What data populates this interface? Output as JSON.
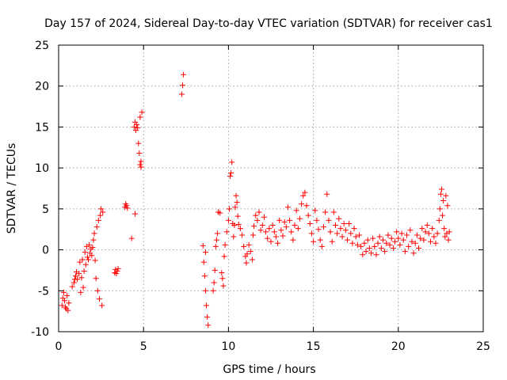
{
  "chart_data": {
    "type": "scatter",
    "title": "Day 157 of 2024, Sidereal Day-to-day VTEC variation (SDTVAR) for receiver cas1",
    "xlabel": "GPS time / hours",
    "ylabel": "SDTVAR / TECUs",
    "xlim": [
      0,
      25
    ],
    "ylim": [
      -10,
      25
    ],
    "xticks": [
      0,
      5,
      10,
      15,
      20,
      25
    ],
    "yticks": [
      -10,
      -5,
      0,
      5,
      10,
      15,
      20,
      25
    ],
    "grid": true,
    "marker": "+",
    "color": "#ff0000",
    "series": [
      {
        "name": "SDTVAR",
        "points": [
          [
            0.2,
            -6.8
          ],
          [
            0.25,
            -5.9
          ],
          [
            0.3,
            -5.2
          ],
          [
            0.35,
            -6.2
          ],
          [
            0.4,
            -7.0
          ],
          [
            0.45,
            -7.2
          ],
          [
            0.5,
            -5.6
          ],
          [
            0.55,
            -7.4
          ],
          [
            0.6,
            -6.5
          ],
          [
            0.8,
            -4.5
          ],
          [
            0.9,
            -4.0
          ],
          [
            0.95,
            -3.6
          ],
          [
            1.0,
            -3.2
          ],
          [
            1.05,
            -2.7
          ],
          [
            1.1,
            -3.6
          ],
          [
            1.2,
            -2.9
          ],
          [
            1.25,
            -1.5
          ],
          [
            1.3,
            -5.2
          ],
          [
            1.35,
            -3.4
          ],
          [
            1.4,
            -1.2
          ],
          [
            1.45,
            -4.6
          ],
          [
            1.5,
            -2.6
          ],
          [
            1.55,
            -0.3
          ],
          [
            1.6,
            -1.8
          ],
          [
            1.65,
            0.4
          ],
          [
            1.7,
            -0.9
          ],
          [
            1.75,
            -1.2
          ],
          [
            1.8,
            0.6
          ],
          [
            1.85,
            -0.4
          ],
          [
            1.9,
            0.1
          ],
          [
            1.95,
            -0.7
          ],
          [
            2.0,
            0.3
          ],
          [
            2.05,
            1.2
          ],
          [
            2.1,
            2.0
          ],
          [
            2.15,
            -1.3
          ],
          [
            2.2,
            -3.5
          ],
          [
            2.25,
            2.8
          ],
          [
            2.3,
            -5.0
          ],
          [
            2.35,
            3.6
          ],
          [
            2.4,
            -6.0
          ],
          [
            2.45,
            4.2
          ],
          [
            2.5,
            5.0
          ],
          [
            2.55,
            -6.8
          ],
          [
            2.6,
            4.6
          ],
          [
            3.3,
            -2.8
          ],
          [
            3.35,
            -2.4
          ],
          [
            3.4,
            -2.9
          ],
          [
            3.45,
            -2.6
          ],
          [
            3.5,
            -2.3
          ],
          [
            3.9,
            5.2
          ],
          [
            3.95,
            5.6
          ],
          [
            4.0,
            5.4
          ],
          [
            4.05,
            5.1
          ],
          [
            4.3,
            1.4
          ],
          [
            4.45,
            15.0
          ],
          [
            4.5,
            15.6
          ],
          [
            4.5,
            4.4
          ],
          [
            4.55,
            14.6
          ],
          [
            4.6,
            15.3
          ],
          [
            4.65,
            14.9
          ],
          [
            4.7,
            13.0
          ],
          [
            4.75,
            11.8
          ],
          [
            4.8,
            10.4
          ],
          [
            4.8,
            16.2
          ],
          [
            4.85,
            10.8
          ],
          [
            4.9,
            16.8
          ],
          [
            4.85,
            10.1
          ],
          [
            7.25,
            19.0
          ],
          [
            7.3,
            20.1
          ],
          [
            7.35,
            21.4
          ],
          [
            8.5,
            0.5
          ],
          [
            8.55,
            -1.5
          ],
          [
            8.6,
            -3.2
          ],
          [
            8.65,
            -5.0
          ],
          [
            8.7,
            -6.8
          ],
          [
            8.75,
            -8.2
          ],
          [
            8.8,
            -9.2
          ],
          [
            8.65,
            -0.3
          ],
          [
            9.1,
            -5.0
          ],
          [
            9.15,
            -4.0
          ],
          [
            9.2,
            -2.5
          ],
          [
            9.25,
            0.4
          ],
          [
            9.3,
            1.2
          ],
          [
            9.35,
            2.0
          ],
          [
            9.4,
            4.6
          ],
          [
            9.5,
            4.5
          ],
          [
            9.6,
            -2.8
          ],
          [
            9.65,
            -3.5
          ],
          [
            9.7,
            -4.4
          ],
          [
            9.75,
            -0.8
          ],
          [
            9.8,
            0.6
          ],
          [
            9.9,
            2.2
          ],
          [
            10.0,
            3.6
          ],
          [
            10.05,
            5.0
          ],
          [
            10.1,
            9.0
          ],
          [
            10.15,
            9.4
          ],
          [
            10.2,
            10.7
          ],
          [
            10.25,
            3.2
          ],
          [
            10.3,
            1.6
          ],
          [
            10.35,
            3.0
          ],
          [
            10.4,
            5.2
          ],
          [
            10.45,
            6.6
          ],
          [
            10.5,
            5.8
          ],
          [
            10.55,
            4.1
          ],
          [
            10.6,
            3.1
          ],
          [
            10.7,
            2.6
          ],
          [
            10.8,
            1.8
          ],
          [
            10.9,
            0.4
          ],
          [
            11.0,
            -0.8
          ],
          [
            11.05,
            -1.6
          ],
          [
            11.1,
            -0.5
          ],
          [
            11.2,
            0.6
          ],
          [
            11.3,
            -0.2
          ],
          [
            11.4,
            -1.2
          ],
          [
            11.45,
            1.8
          ],
          [
            11.5,
            2.9
          ],
          [
            11.6,
            4.2
          ],
          [
            11.7,
            3.6
          ],
          [
            11.8,
            4.6
          ],
          [
            11.9,
            2.4
          ],
          [
            12.0,
            3.0
          ],
          [
            12.1,
            4.0
          ],
          [
            12.2,
            2.2
          ],
          [
            12.3,
            1.4
          ],
          [
            12.4,
            2.6
          ],
          [
            12.5,
            1.0
          ],
          [
            12.6,
            3.0
          ],
          [
            12.7,
            2.2
          ],
          [
            12.8,
            1.6
          ],
          [
            12.9,
            0.8
          ],
          [
            13.0,
            3.6
          ],
          [
            13.1,
            2.4
          ],
          [
            13.2,
            1.7
          ],
          [
            13.3,
            3.4
          ],
          [
            13.4,
            2.8
          ],
          [
            13.5,
            5.2
          ],
          [
            13.6,
            3.6
          ],
          [
            13.7,
            2.2
          ],
          [
            13.8,
            1.2
          ],
          [
            13.9,
            3.0
          ],
          [
            14.0,
            4.8
          ],
          [
            14.1,
            2.6
          ],
          [
            14.2,
            3.8
          ],
          [
            14.3,
            5.6
          ],
          [
            14.4,
            6.6
          ],
          [
            14.5,
            7.0
          ],
          [
            14.6,
            5.4
          ],
          [
            14.7,
            4.2
          ],
          [
            14.8,
            3.2
          ],
          [
            14.9,
            2.0
          ],
          [
            15.0,
            1.0
          ],
          [
            15.1,
            4.8
          ],
          [
            15.2,
            3.6
          ],
          [
            15.3,
            2.5
          ],
          [
            15.4,
            1.2
          ],
          [
            15.5,
            0.4
          ],
          [
            15.6,
            2.8
          ],
          [
            15.7,
            4.6
          ],
          [
            15.8,
            6.8
          ],
          [
            15.9,
            3.6
          ],
          [
            16.0,
            2.2
          ],
          [
            16.1,
            1.0
          ],
          [
            16.2,
            4.6
          ],
          [
            16.3,
            3.0
          ],
          [
            16.4,
            2.0
          ],
          [
            16.5,
            3.8
          ],
          [
            16.6,
            2.6
          ],
          [
            16.7,
            1.6
          ],
          [
            16.8,
            3.2
          ],
          [
            16.9,
            2.4
          ],
          [
            17.0,
            1.2
          ],
          [
            17.1,
            3.2
          ],
          [
            17.2,
            2.0
          ],
          [
            17.3,
            0.8
          ],
          [
            17.4,
            2.6
          ],
          [
            17.5,
            1.6
          ],
          [
            17.6,
            0.6
          ],
          [
            17.7,
            1.8
          ],
          [
            17.8,
            0.4
          ],
          [
            17.9,
            -0.6
          ],
          [
            18.0,
            0.8
          ],
          [
            18.1,
            -0.2
          ],
          [
            18.2,
            1.2
          ],
          [
            18.3,
            0.2
          ],
          [
            18.4,
            -0.4
          ],
          [
            18.5,
            1.4
          ],
          [
            18.6,
            0.4
          ],
          [
            18.7,
            -0.6
          ],
          [
            18.8,
            0.8
          ],
          [
            18.9,
            1.6
          ],
          [
            19.0,
            0.2
          ],
          [
            19.1,
            1.2
          ],
          [
            19.2,
            -0.2
          ],
          [
            19.3,
            0.8
          ],
          [
            19.4,
            1.8
          ],
          [
            19.5,
            0.6
          ],
          [
            19.6,
            1.4
          ],
          [
            19.7,
            0.2
          ],
          [
            19.8,
            1.0
          ],
          [
            19.9,
            2.2
          ],
          [
            20.0,
            1.4
          ],
          [
            20.1,
            0.6
          ],
          [
            20.2,
            2.0
          ],
          [
            20.3,
            1.2
          ],
          [
            20.4,
            -0.2
          ],
          [
            20.5,
            1.8
          ],
          [
            20.6,
            0.4
          ],
          [
            20.7,
            2.4
          ],
          [
            20.8,
            1.0
          ],
          [
            20.9,
            -0.4
          ],
          [
            21.0,
            0.8
          ],
          [
            21.1,
            1.8
          ],
          [
            21.2,
            0.2
          ],
          [
            21.3,
            1.4
          ],
          [
            21.4,
            2.6
          ],
          [
            21.5,
            1.2
          ],
          [
            21.6,
            2.2
          ],
          [
            21.7,
            3.0
          ],
          [
            21.8,
            2.0
          ],
          [
            21.9,
            1.0
          ],
          [
            22.0,
            2.6
          ],
          [
            22.1,
            1.6
          ],
          [
            22.2,
            0.8
          ],
          [
            22.3,
            2.0
          ],
          [
            22.4,
            3.6
          ],
          [
            22.45,
            5.0
          ],
          [
            22.5,
            6.8
          ],
          [
            22.55,
            7.4
          ],
          [
            22.6,
            4.2
          ],
          [
            22.65,
            6.0
          ],
          [
            22.7,
            2.6
          ],
          [
            22.75,
            1.6
          ],
          [
            22.8,
            6.6
          ],
          [
            22.85,
            2.0
          ],
          [
            22.9,
            5.4
          ],
          [
            22.95,
            1.2
          ],
          [
            23.0,
            2.2
          ]
        ]
      }
    ]
  }
}
